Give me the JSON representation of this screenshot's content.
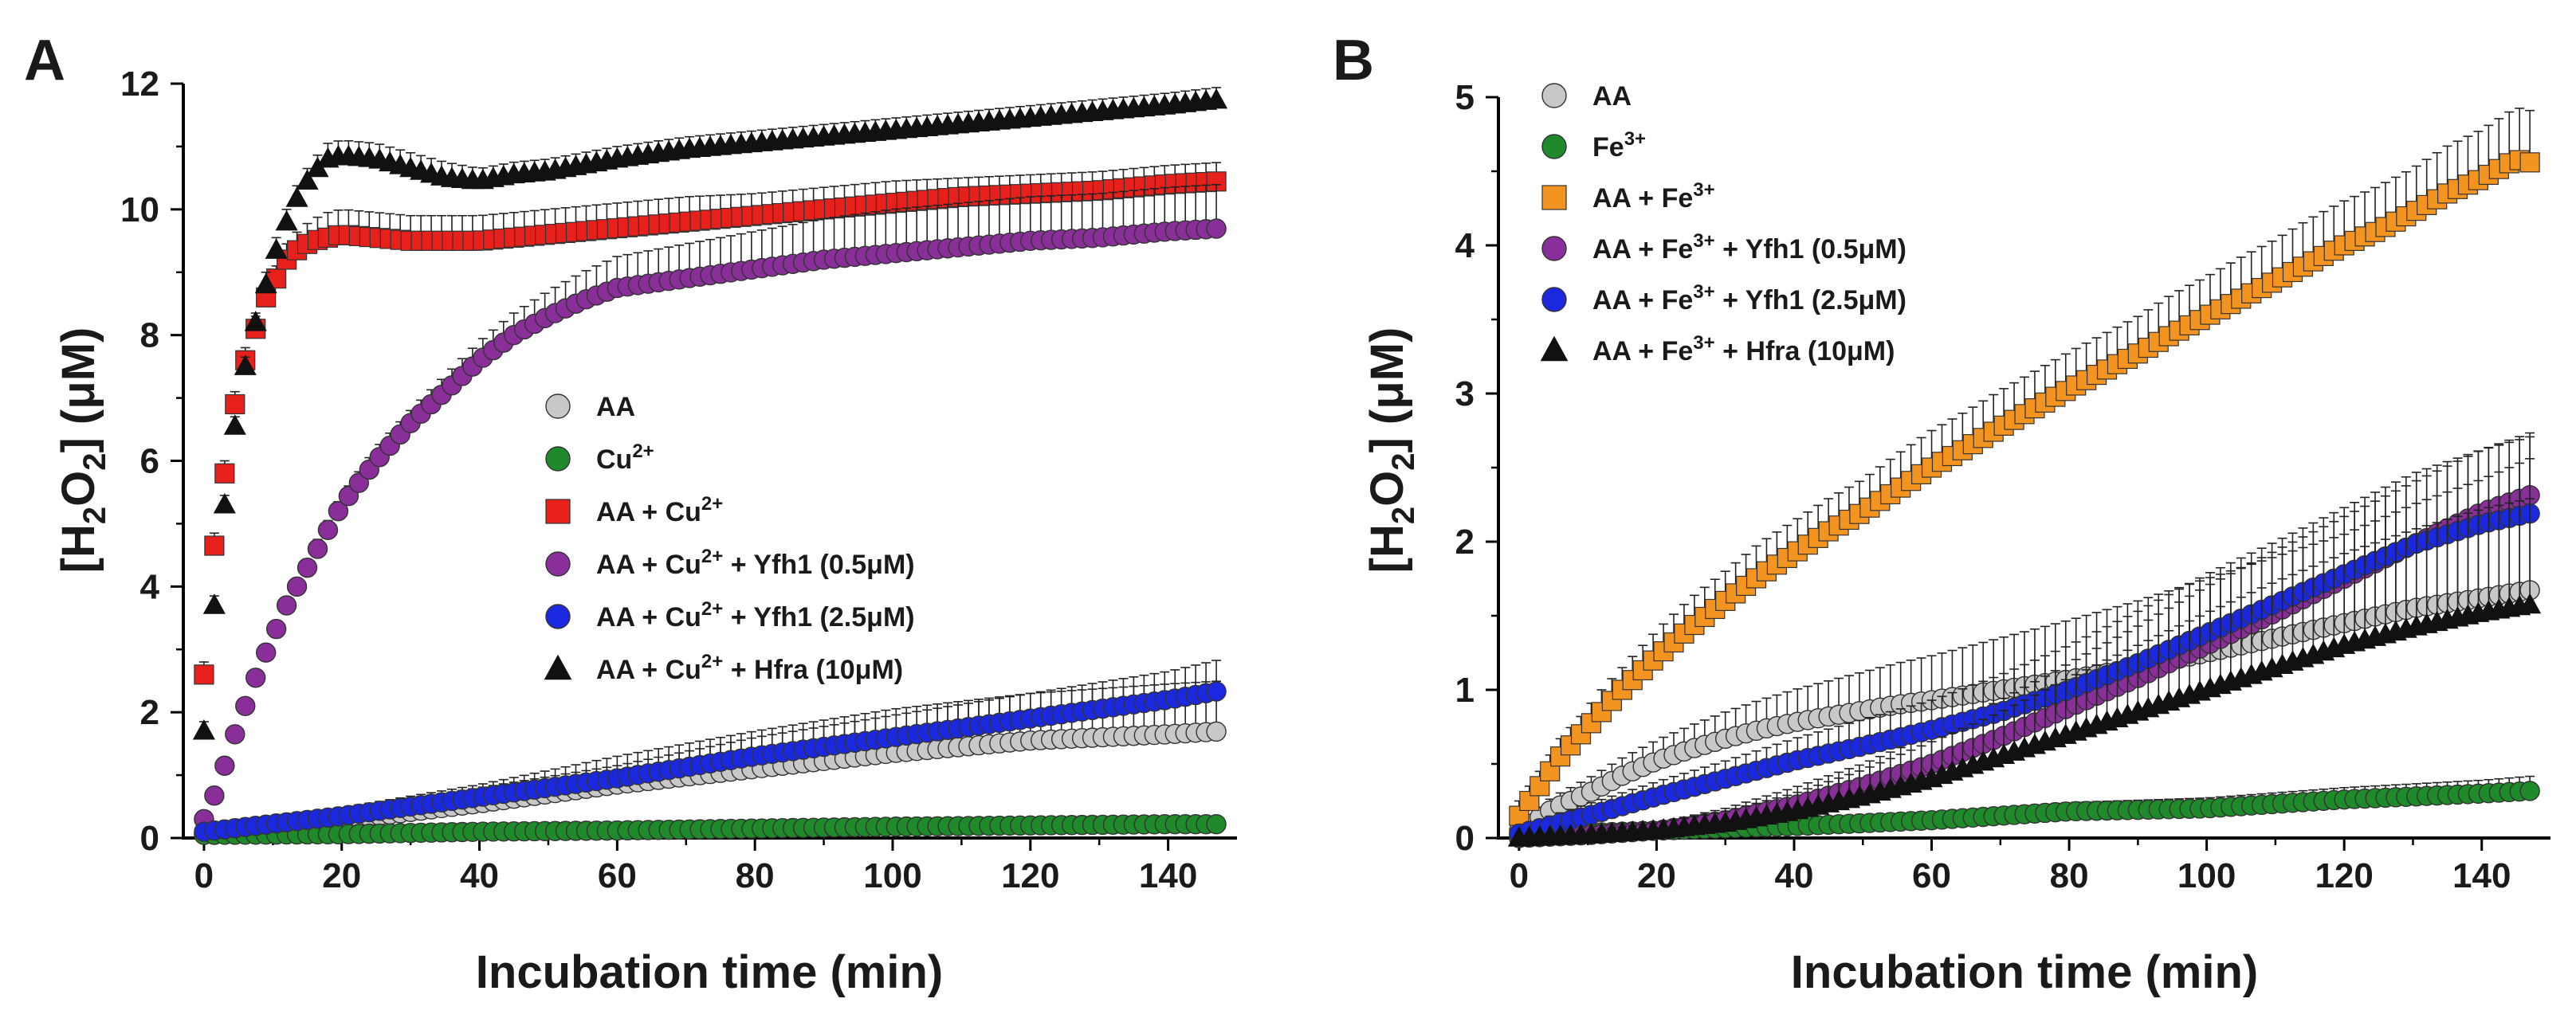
{
  "chart_data": [
    {
      "type": "scatter",
      "panel_label": "A",
      "title": "",
      "xlabel": "Incubation time (min)",
      "ylabel": "[H2O2] (μM)",
      "ylabel_parts": {
        "open": "[H",
        "sub1": "2",
        "mid": "O",
        "sub2": "2",
        "close": "] (",
        "unit": "μM",
        "end": ")"
      },
      "xlim": [
        -3,
        150
      ],
      "ylim": [
        0,
        12
      ],
      "xticks": [
        0,
        20,
        40,
        60,
        80,
        100,
        120,
        140
      ],
      "yticks": [
        0,
        2,
        4,
        6,
        8,
        10,
        12
      ],
      "legend_position": "center-right",
      "series": [
        {
          "name": "AA",
          "base": "AA",
          "sup": "",
          "suffix": "",
          "marker": "circle",
          "color": "#c8c8c8",
          "x": [
            0,
            20,
            40,
            60,
            80,
            100,
            120,
            140,
            148
          ],
          "y": [
            0.08,
            0.28,
            0.55,
            0.85,
            1.1,
            1.35,
            1.55,
            1.65,
            1.7
          ],
          "err": [
            0.08,
            0.2,
            0.3,
            0.45,
            0.6,
            0.7,
            0.75,
            0.8,
            0.8
          ]
        },
        {
          "name": "Cu2+",
          "base": "Cu",
          "sup": "2+",
          "suffix": "",
          "marker": "circle",
          "color": "#1e8a2a",
          "x": [
            0,
            20,
            40,
            60,
            80,
            100,
            120,
            140,
            148
          ],
          "y": [
            0.05,
            0.06,
            0.1,
            0.12,
            0.15,
            0.18,
            0.2,
            0.22,
            0.22
          ],
          "err": [
            0.03,
            0.03,
            0.04,
            0.04,
            0.05,
            0.05,
            0.05,
            0.05,
            0.05
          ]
        },
        {
          "name": "AA + Cu2+",
          "base": "AA + Cu",
          "sup": "2+",
          "suffix": "",
          "marker": "square",
          "color": "#e8201c",
          "x": [
            0,
            1,
            2,
            3,
            4,
            5,
            6,
            7,
            8,
            9,
            10,
            11,
            12,
            14,
            16,
            18,
            20,
            25,
            30,
            35,
            40,
            50,
            60,
            70,
            80,
            90,
            100,
            110,
            120,
            130,
            140,
            148
          ],
          "y": [
            2.6,
            4.1,
            5.2,
            5.8,
            6.6,
            7.2,
            7.6,
            7.9,
            8.3,
            8.6,
            8.8,
            9.0,
            9.2,
            9.4,
            9.5,
            9.55,
            9.6,
            9.55,
            9.5,
            9.5,
            9.5,
            9.6,
            9.7,
            9.8,
            9.9,
            10.0,
            10.1,
            10.2,
            10.25,
            10.3,
            10.4,
            10.45
          ],
          "err": [
            0.2,
            0.2,
            0.2,
            0.2,
            0.2,
            0.2,
            0.2,
            0.2,
            0.2,
            0.2,
            0.2,
            0.2,
            0.25,
            0.3,
            0.35,
            0.4,
            0.4,
            0.4,
            0.4,
            0.4,
            0.4,
            0.4,
            0.4,
            0.4,
            0.35,
            0.35,
            0.35,
            0.3,
            0.3,
            0.3,
            0.3,
            0.3
          ]
        },
        {
          "name": "AA + Cu2+ + Yfh1 (0.5μM)",
          "base": "AA + Cu",
          "sup": "2+",
          "suffix": " + Yfh1 (0.5μM)",
          "marker": "circle",
          "color": "#8a2f9a",
          "x": [
            0,
            2,
            4,
            6,
            8,
            10,
            12,
            14,
            16,
            18,
            20,
            25,
            30,
            35,
            40,
            45,
            50,
            55,
            60,
            70,
            80,
            90,
            100,
            110,
            120,
            130,
            140,
            148
          ],
          "y": [
            0.3,
            0.8,
            1.5,
            2.1,
            2.7,
            3.2,
            3.7,
            4.1,
            4.5,
            4.9,
            5.3,
            6.0,
            6.6,
            7.1,
            7.6,
            8.0,
            8.3,
            8.55,
            8.75,
            8.9,
            9.05,
            9.2,
            9.3,
            9.4,
            9.5,
            9.55,
            9.65,
            9.7
          ],
          "err": [
            0.1,
            0.1,
            0.1,
            0.1,
            0.1,
            0.1,
            0.1,
            0.1,
            0.15,
            0.15,
            0.15,
            0.2,
            0.2,
            0.25,
            0.3,
            0.35,
            0.4,
            0.45,
            0.5,
            0.55,
            0.6,
            0.65,
            0.7,
            0.7,
            0.7,
            0.7,
            0.7,
            0.7
          ]
        },
        {
          "name": "AA + Cu2+ + Yfh1 (2.5μM)",
          "base": "AA + Cu",
          "sup": "2+",
          "suffix": " + Yfh1 (2.5μM)",
          "marker": "circle",
          "color": "#1a28e0",
          "x": [
            0,
            20,
            40,
            60,
            80,
            100,
            120,
            140,
            148
          ],
          "y": [
            0.1,
            0.35,
            0.65,
            0.95,
            1.3,
            1.6,
            1.9,
            2.2,
            2.35
          ],
          "err": [
            0.05,
            0.1,
            0.15,
            0.2,
            0.3,
            0.35,
            0.4,
            0.45,
            0.5
          ]
        },
        {
          "name": "AA + Cu2+ + Hfra (10μM)",
          "base": "AA + Cu",
          "sup": "2+",
          "suffix": " + Hfra (10μM)",
          "marker": "triangle",
          "color": "#111111",
          "x": [
            0,
            1,
            2,
            3,
            4,
            5,
            6,
            7,
            8,
            9,
            10,
            11,
            12,
            14,
            16,
            18,
            20,
            25,
            30,
            35,
            40,
            45,
            50,
            60,
            70,
            80,
            90,
            100,
            110,
            120,
            130,
            140,
            148
          ],
          "y": [
            1.7,
            3.1,
            4.3,
            5.3,
            6.2,
            6.9,
            7.5,
            8.0,
            8.4,
            8.8,
            9.2,
            9.5,
            9.8,
            10.3,
            10.6,
            10.8,
            10.85,
            10.8,
            10.65,
            10.5,
            10.45,
            10.55,
            10.6,
            10.8,
            10.95,
            11.05,
            11.15,
            11.25,
            11.35,
            11.45,
            11.55,
            11.65,
            11.75
          ],
          "err": [
            0.15,
            0.15,
            0.15,
            0.15,
            0.15,
            0.15,
            0.15,
            0.15,
            0.15,
            0.2,
            0.2,
            0.2,
            0.2,
            0.2,
            0.2,
            0.25,
            0.25,
            0.25,
            0.25,
            0.25,
            0.2,
            0.2,
            0.2,
            0.2,
            0.2,
            0.2,
            0.2,
            0.2,
            0.2,
            0.2,
            0.2,
            0.2,
            0.2
          ]
        }
      ]
    },
    {
      "type": "scatter",
      "panel_label": "B",
      "title": "",
      "xlabel": "Incubation time (min)",
      "ylabel": "[H2O2] (μM)",
      "ylabel_parts": {
        "open": "[H",
        "sub1": "2",
        "mid": "O",
        "sub2": "2",
        "close": "] (",
        "unit": "μM",
        "end": ")"
      },
      "xlim": [
        -3,
        150
      ],
      "ylim": [
        0,
        5
      ],
      "xticks": [
        0,
        20,
        40,
        60,
        80,
        100,
        120,
        140
      ],
      "yticks": [
        0,
        1,
        2,
        3,
        4,
        5
      ],
      "legend_position": "top-left",
      "series": [
        {
          "name": "AA",
          "base": "AA",
          "sup": "",
          "suffix": "",
          "marker": "circle",
          "color": "#c8c8c8",
          "x": [
            0,
            5,
            10,
            15,
            20,
            25,
            30,
            35,
            40,
            45,
            50,
            55,
            60,
            70,
            80,
            90,
            100,
            110,
            120,
            130,
            140,
            148
          ],
          "y": [
            0.05,
            0.2,
            0.3,
            0.42,
            0.52,
            0.6,
            0.67,
            0.73,
            0.78,
            0.82,
            0.86,
            0.9,
            0.93,
            1.0,
            1.07,
            1.15,
            1.25,
            1.35,
            1.45,
            1.55,
            1.62,
            1.68
          ],
          "err": [
            0.05,
            0.08,
            0.1,
            0.12,
            0.14,
            0.16,
            0.18,
            0.2,
            0.22,
            0.24,
            0.26,
            0.28,
            0.3,
            0.35,
            0.4,
            0.45,
            0.5,
            0.55,
            0.6,
            0.7,
            0.8,
            0.9
          ]
        },
        {
          "name": "Fe3+",
          "base": "Fe",
          "sup": "3+",
          "suffix": "",
          "marker": "circle",
          "color": "#1e8a2a",
          "x": [
            0,
            20,
            40,
            60,
            80,
            100,
            120,
            140,
            148
          ],
          "y": [
            0.02,
            0.05,
            0.08,
            0.12,
            0.18,
            0.2,
            0.26,
            0.3,
            0.32
          ],
          "err": [
            0.02,
            0.03,
            0.04,
            0.05,
            0.06,
            0.07,
            0.08,
            0.09,
            0.1
          ]
        },
        {
          "name": "AA + Fe3+",
          "base": "AA + Fe",
          "sup": "3+",
          "suffix": "",
          "marker": "square",
          "color": "#f39320",
          "x": [
            0,
            3,
            6,
            9,
            12,
            15,
            20,
            25,
            30,
            35,
            40,
            45,
            50,
            55,
            60,
            65,
            70,
            75,
            80,
            85,
            90,
            95,
            100,
            105,
            110,
            115,
            120,
            125,
            130,
            135,
            140,
            145,
            148
          ],
          "y": [
            0.15,
            0.35,
            0.55,
            0.7,
            0.85,
            1.0,
            1.22,
            1.42,
            1.6,
            1.77,
            1.92,
            2.07,
            2.2,
            2.35,
            2.5,
            2.63,
            2.77,
            2.9,
            3.03,
            3.15,
            3.27,
            3.4,
            3.52,
            3.64,
            3.76,
            3.88,
            4.0,
            4.1,
            4.22,
            4.35,
            4.45,
            4.58,
            4.55
          ],
          "err": [
            0.1,
            0.1,
            0.12,
            0.12,
            0.15,
            0.15,
            0.18,
            0.2,
            0.2,
            0.22,
            0.22,
            0.22,
            0.22,
            0.24,
            0.25,
            0.25,
            0.25,
            0.25,
            0.25,
            0.25,
            0.25,
            0.27,
            0.27,
            0.28,
            0.28,
            0.3,
            0.3,
            0.3,
            0.3,
            0.32,
            0.33,
            0.35,
            0.35
          ]
        },
        {
          "name": "AA + Fe3+ + Yfh1 (0.5μM)",
          "base": "AA + Fe",
          "sup": "3+",
          "suffix": " + Yfh1 (0.5μM)",
          "marker": "circle",
          "color": "#8a2f9a",
          "x": [
            0,
            10,
            20,
            30,
            40,
            50,
            60,
            70,
            80,
            90,
            100,
            110,
            120,
            130,
            140,
            148
          ],
          "y": [
            0.0,
            0.02,
            0.05,
            0.12,
            0.22,
            0.35,
            0.5,
            0.68,
            0.88,
            1.08,
            1.3,
            1.52,
            1.75,
            1.98,
            2.2,
            2.33
          ],
          "err": [
            0.02,
            0.03,
            0.05,
            0.08,
            0.12,
            0.15,
            0.2,
            0.25,
            0.3,
            0.35,
            0.4,
            0.42,
            0.42,
            0.42,
            0.42,
            0.42
          ]
        },
        {
          "name": "AA + Fe3+ + Yfh1 (2.5μM)",
          "base": "AA + Fe",
          "sup": "3+",
          "suffix": " + Yfh1 (2.5μM)",
          "marker": "circle",
          "color": "#1a28e0",
          "x": [
            0,
            10,
            20,
            30,
            40,
            50,
            60,
            70,
            80,
            90,
            100,
            110,
            120,
            130,
            140,
            148
          ],
          "y": [
            0.03,
            0.15,
            0.28,
            0.4,
            0.52,
            0.62,
            0.73,
            0.85,
            1.0,
            1.18,
            1.38,
            1.58,
            1.78,
            1.98,
            2.12,
            2.2
          ],
          "err": [
            0.05,
            0.08,
            0.1,
            0.12,
            0.15,
            0.18,
            0.2,
            0.25,
            0.3,
            0.35,
            0.4,
            0.42,
            0.45,
            0.48,
            0.5,
            0.52
          ]
        },
        {
          "name": "AA + Fe3+ + Hfra (10μM)",
          "base": "AA + Fe",
          "sup": "3+",
          "suffix": " + Hfra (10μM)",
          "marker": "triangle",
          "color": "#111111",
          "x": [
            0,
            10,
            20,
            30,
            40,
            50,
            60,
            70,
            80,
            90,
            100,
            110,
            120,
            130,
            140,
            148
          ],
          "y": [
            0.0,
            0.02,
            0.05,
            0.1,
            0.18,
            0.28,
            0.4,
            0.55,
            0.7,
            0.85,
            1.0,
            1.15,
            1.3,
            1.42,
            1.52,
            1.58
          ],
          "err": [
            0.02,
            0.03,
            0.05,
            0.08,
            0.12,
            0.18,
            0.25,
            0.3,
            0.38,
            0.45,
            0.52,
            0.58,
            0.62,
            0.66,
            0.7,
            0.72
          ]
        }
      ]
    }
  ]
}
